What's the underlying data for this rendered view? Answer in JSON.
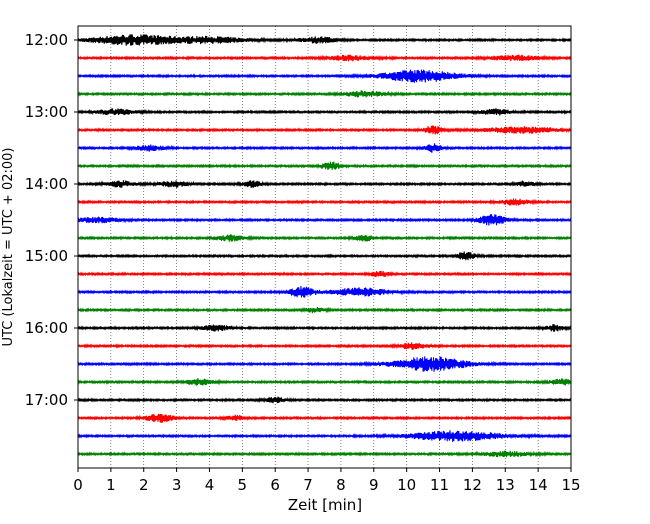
{
  "chart_data": {
    "type": "line",
    "chart_kind": "helicorder",
    "title": "",
    "xlabel": "Zeit  [min]",
    "ylabel": "UTC (Lokalzeit = UTC + 02:00)",
    "xlim": [
      0,
      15
    ],
    "x_ticks": [
      0,
      1,
      2,
      3,
      4,
      5,
      6,
      7,
      8,
      9,
      10,
      11,
      12,
      13,
      14,
      15
    ],
    "x_tick_labels": [
      "0",
      "1",
      "2",
      "3",
      "4",
      "5",
      "6",
      "7",
      "8",
      "9",
      "10",
      "11",
      "12",
      "13",
      "14",
      "15"
    ],
    "y_tick_labels": [
      "12:00",
      "13:00",
      "14:00",
      "15:00",
      "16:00",
      "17:00"
    ],
    "grid": "vertical dotted lines at each minute",
    "legend": "none",
    "line_interval_min": 15,
    "color_cycle": [
      "#000000",
      "#ff0000",
      "#0000ff",
      "#008000"
    ],
    "traces": [
      {
        "start": "12:00",
        "color": "#000000",
        "events": [
          [
            1.7,
            0.9,
            5
          ],
          [
            4.0,
            0.8,
            3
          ],
          [
            7.3,
            0.4,
            3
          ]
        ]
      },
      {
        "start": "12:15",
        "color": "#ff0000",
        "events": [
          [
            8.3,
            0.5,
            2.5
          ],
          [
            13.3,
            0.5,
            2.5
          ]
        ]
      },
      {
        "start": "12:30",
        "color": "#0000ff",
        "events": [
          [
            10.4,
            0.8,
            6
          ]
        ]
      },
      {
        "start": "12:45",
        "color": "#008000",
        "events": [
          [
            8.7,
            0.4,
            3
          ]
        ]
      },
      {
        "start": "13:00",
        "color": "#000000",
        "events": [
          [
            1.2,
            0.4,
            3
          ],
          [
            12.7,
            0.3,
            3
          ]
        ]
      },
      {
        "start": "13:15",
        "color": "#ff0000",
        "events": [
          [
            10.8,
            0.2,
            4
          ],
          [
            13.5,
            0.8,
            3
          ]
        ]
      },
      {
        "start": "13:30",
        "color": "#0000ff",
        "events": [
          [
            2.2,
            0.3,
            3
          ],
          [
            10.8,
            0.2,
            4
          ]
        ]
      },
      {
        "start": "13:45",
        "color": "#008000",
        "events": [
          [
            7.7,
            0.2,
            4
          ]
        ]
      },
      {
        "start": "14:00",
        "color": "#000000",
        "events": [
          [
            1.3,
            0.3,
            3
          ],
          [
            2.9,
            0.3,
            3
          ],
          [
            5.3,
            0.2,
            3
          ],
          [
            13.6,
            0.2,
            3
          ]
        ]
      },
      {
        "start": "14:15",
        "color": "#ff0000",
        "events": [
          [
            13.3,
            0.3,
            3
          ]
        ]
      },
      {
        "start": "14:30",
        "color": "#0000ff",
        "events": [
          [
            0.6,
            0.5,
            2.5
          ],
          [
            12.6,
            0.3,
            5
          ]
        ]
      },
      {
        "start": "14:45",
        "color": "#008000",
        "events": [
          [
            4.6,
            0.3,
            3
          ],
          [
            8.7,
            0.2,
            3
          ]
        ]
      },
      {
        "start": "15:00",
        "color": "#000000",
        "events": [
          [
            11.8,
            0.2,
            4
          ]
        ]
      },
      {
        "start": "15:15",
        "color": "#ff0000",
        "events": [
          [
            9.2,
            0.2,
            3
          ]
        ]
      },
      {
        "start": "15:30",
        "color": "#0000ff",
        "events": [
          [
            6.8,
            0.3,
            5
          ],
          [
            8.6,
            0.6,
            4
          ]
        ]
      },
      {
        "start": "15:45",
        "color": "#008000",
        "events": [
          [
            7.2,
            0.2,
            2.5
          ]
        ]
      },
      {
        "start": "16:00",
        "color": "#000000",
        "events": [
          [
            4.2,
            0.3,
            3
          ],
          [
            14.5,
            0.2,
            3
          ]
        ]
      },
      {
        "start": "16:15",
        "color": "#ff0000",
        "events": [
          [
            10.2,
            0.3,
            3
          ]
        ]
      },
      {
        "start": "16:30",
        "color": "#0000ff",
        "events": [
          [
            10.7,
            0.8,
            7
          ]
        ]
      },
      {
        "start": "16:45",
        "color": "#008000",
        "events": [
          [
            3.7,
            0.3,
            3
          ],
          [
            14.8,
            0.3,
            3
          ]
        ]
      },
      {
        "start": "17:00",
        "color": "#000000",
        "events": [
          [
            6.0,
            0.2,
            3
          ]
        ]
      },
      {
        "start": "17:15",
        "color": "#ff0000",
        "events": [
          [
            2.5,
            0.3,
            4
          ],
          [
            4.8,
            0.2,
            2.5
          ]
        ]
      },
      {
        "start": "17:30",
        "color": "#0000ff",
        "events": [
          [
            11.5,
            1.0,
            5
          ]
        ]
      },
      {
        "start": "17:45",
        "color": "#008000",
        "events": [
          [
            13.0,
            0.5,
            2.5
          ]
        ]
      }
    ]
  }
}
